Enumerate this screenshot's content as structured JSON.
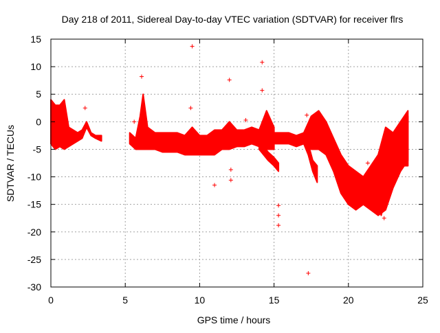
{
  "chart_data": {
    "type": "scatter",
    "title": "Day 218 of 2011, Sidereal Day-to-day VTEC variation (SDTVAR) for receiver flrs",
    "xlabel": "GPS time / hours",
    "ylabel": "SDTVAR / TECUs",
    "xlim": [
      0,
      25
    ],
    "ylim": [
      -30,
      15
    ],
    "x_ticks": [
      0,
      5,
      10,
      15,
      20,
      25
    ],
    "y_ticks": [
      -30,
      -25,
      -20,
      -15,
      -10,
      -5,
      0,
      5,
      10,
      15
    ],
    "grid": true,
    "marker": "+",
    "color": "#ff0000",
    "series": [
      {
        "name": "SDTVAR",
        "bands": [
          {
            "x": [
              0.0,
              0.3,
              0.6,
              0.9,
              1.2,
              1.5,
              1.8,
              2.1,
              2.4,
              2.7,
              3.0,
              3.4
            ],
            "y_low": [
              -4,
              -5,
              -4.5,
              -5,
              -4.5,
              -4,
              -3.5,
              -3,
              -1,
              -2.5,
              -3,
              -3.5
            ],
            "y_high": [
              4,
              3,
              3,
              4,
              -1,
              -1.5,
              -2,
              -1.5,
              0,
              -2,
              -2.5,
              -2.5
            ]
          },
          {
            "x": [
              5.3,
              5.7,
              6.0,
              6.2,
              6.5,
              7.0,
              7.5,
              8.0,
              8.5,
              9.0,
              9.5,
              10.0,
              10.5,
              11.0,
              11.5,
              12.0,
              12.5,
              13.0,
              13.5,
              14.0,
              14.5,
              15.0
            ],
            "y_low": [
              -4,
              -5,
              -5,
              -5,
              -5,
              -5,
              -5.5,
              -5.5,
              -5.5,
              -6,
              -6,
              -6,
              -6,
              -6,
              -5,
              -5,
              -4.5,
              -4.5,
              -4,
              -4.5,
              -5,
              -5
            ],
            "y_high": [
              -2,
              -3,
              1,
              5,
              -1,
              -2,
              -2,
              -2,
              -2,
              -2.5,
              -1,
              -2.5,
              -2.5,
              -1.5,
              -1.5,
              0,
              -1.5,
              -1.5,
              -1,
              -1.5,
              2,
              -1
            ]
          },
          {
            "x": [
              15.0,
              15.5,
              16.0,
              16.5,
              17.0,
              17.5,
              18.0,
              18.5,
              19.0,
              19.5,
              20.0,
              20.5,
              21.0,
              21.5,
              22.0,
              22.5,
              23.0,
              23.5,
              24.0
            ],
            "y_low": [
              -4,
              -4,
              -4,
              -4.5,
              -4,
              -5,
              -5,
              -6,
              -9,
              -13,
              -15,
              -16,
              -15,
              -16,
              -17,
              -16,
              -12,
              -9,
              -7
            ],
            "y_high": [
              -2,
              -2,
              -2,
              -2.5,
              -2,
              1,
              2,
              0,
              -3,
              -6,
              -8,
              -9,
              -10,
              -8,
              -6,
              -1,
              -2,
              0,
              2
            ]
          },
          {
            "x": [
              14.0,
              14.3,
              14.6,
              15.0,
              15.3
            ],
            "y_low": [
              -5,
              -6,
              -7,
              -8,
              -9
            ],
            "y_high": [
              -4,
              -4.5,
              -5.5,
              -6.5,
              -7.5
            ]
          },
          {
            "x": [
              17.0,
              17.3,
              17.6,
              17.9
            ],
            "y_low": [
              -4,
              -6,
              -9,
              -11
            ],
            "y_high": [
              -2,
              -4,
              -7,
              -8
            ]
          },
          {
            "x": [
              22.2,
              22.5,
              22.8,
              23.1,
              23.4,
              23.7,
              24.0
            ],
            "y_low": [
              -17,
              -14,
              -10,
              -11,
              -9,
              -8,
              -8
            ],
            "y_high": [
              -15,
              -10,
              -6,
              -3,
              -2,
              0,
              1
            ]
          }
        ],
        "outliers": [
          [
            9.5,
            13.7
          ],
          [
            6.1,
            8.2
          ],
          [
            14.2,
            10.8
          ],
          [
            12.0,
            7.6
          ],
          [
            2.3,
            2.5
          ],
          [
            9.4,
            2.5
          ],
          [
            11.0,
            -11.5
          ],
          [
            12.1,
            -8.7
          ],
          [
            12.1,
            -10.6
          ],
          [
            15.3,
            -15.2
          ],
          [
            15.3,
            -17.0
          ],
          [
            15.3,
            -18.8
          ],
          [
            17.3,
            -27.5
          ],
          [
            17.2,
            1.2
          ],
          [
            5.6,
            0.0
          ],
          [
            13.1,
            0.3
          ],
          [
            14.2,
            5.7
          ],
          [
            21.3,
            -7.5
          ],
          [
            22.4,
            -17.5
          ]
        ]
      }
    ]
  }
}
